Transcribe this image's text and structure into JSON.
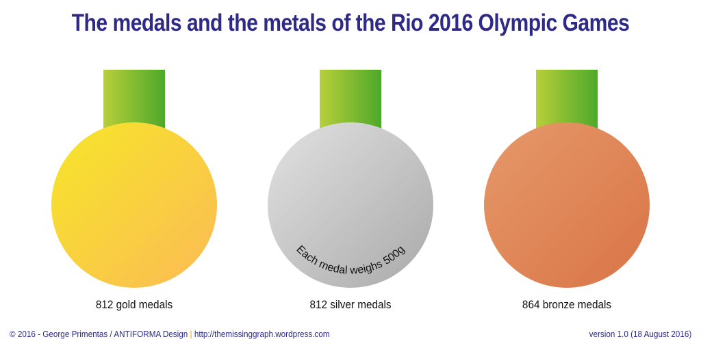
{
  "title": "The medals and the metals of the Rio 2016 Olympic Games",
  "medals": [
    {
      "caption": "812 gold medals",
      "color_light": "#f6e629",
      "color_dark": "#fcbb55",
      "ribbon_light": "#b8cf3a",
      "ribbon_dark": "#4da82a"
    },
    {
      "caption": "812 silver medals",
      "color_light": "#e2e2e2",
      "color_dark": "#a9a9a9",
      "ribbon_light": "#b8cf3a",
      "ribbon_dark": "#4da82a"
    },
    {
      "caption": "864 bronze medals",
      "color_light": "#e6996a",
      "color_dark": "#d97446",
      "ribbon_light": "#b8cf3a",
      "ribbon_dark": "#4da82a"
    }
  ],
  "weight_note": "Each medal weighs 500g",
  "footer": {
    "credit": "© 2016 - George Primentas / ANTIFORMA Design",
    "separator": "|",
    "url": "http://themissinggraph.wordpress.com",
    "version": "version 1.0 (18 August 2016)"
  },
  "colors": {
    "title": "#2e2a86",
    "separator": "#e8a400"
  }
}
